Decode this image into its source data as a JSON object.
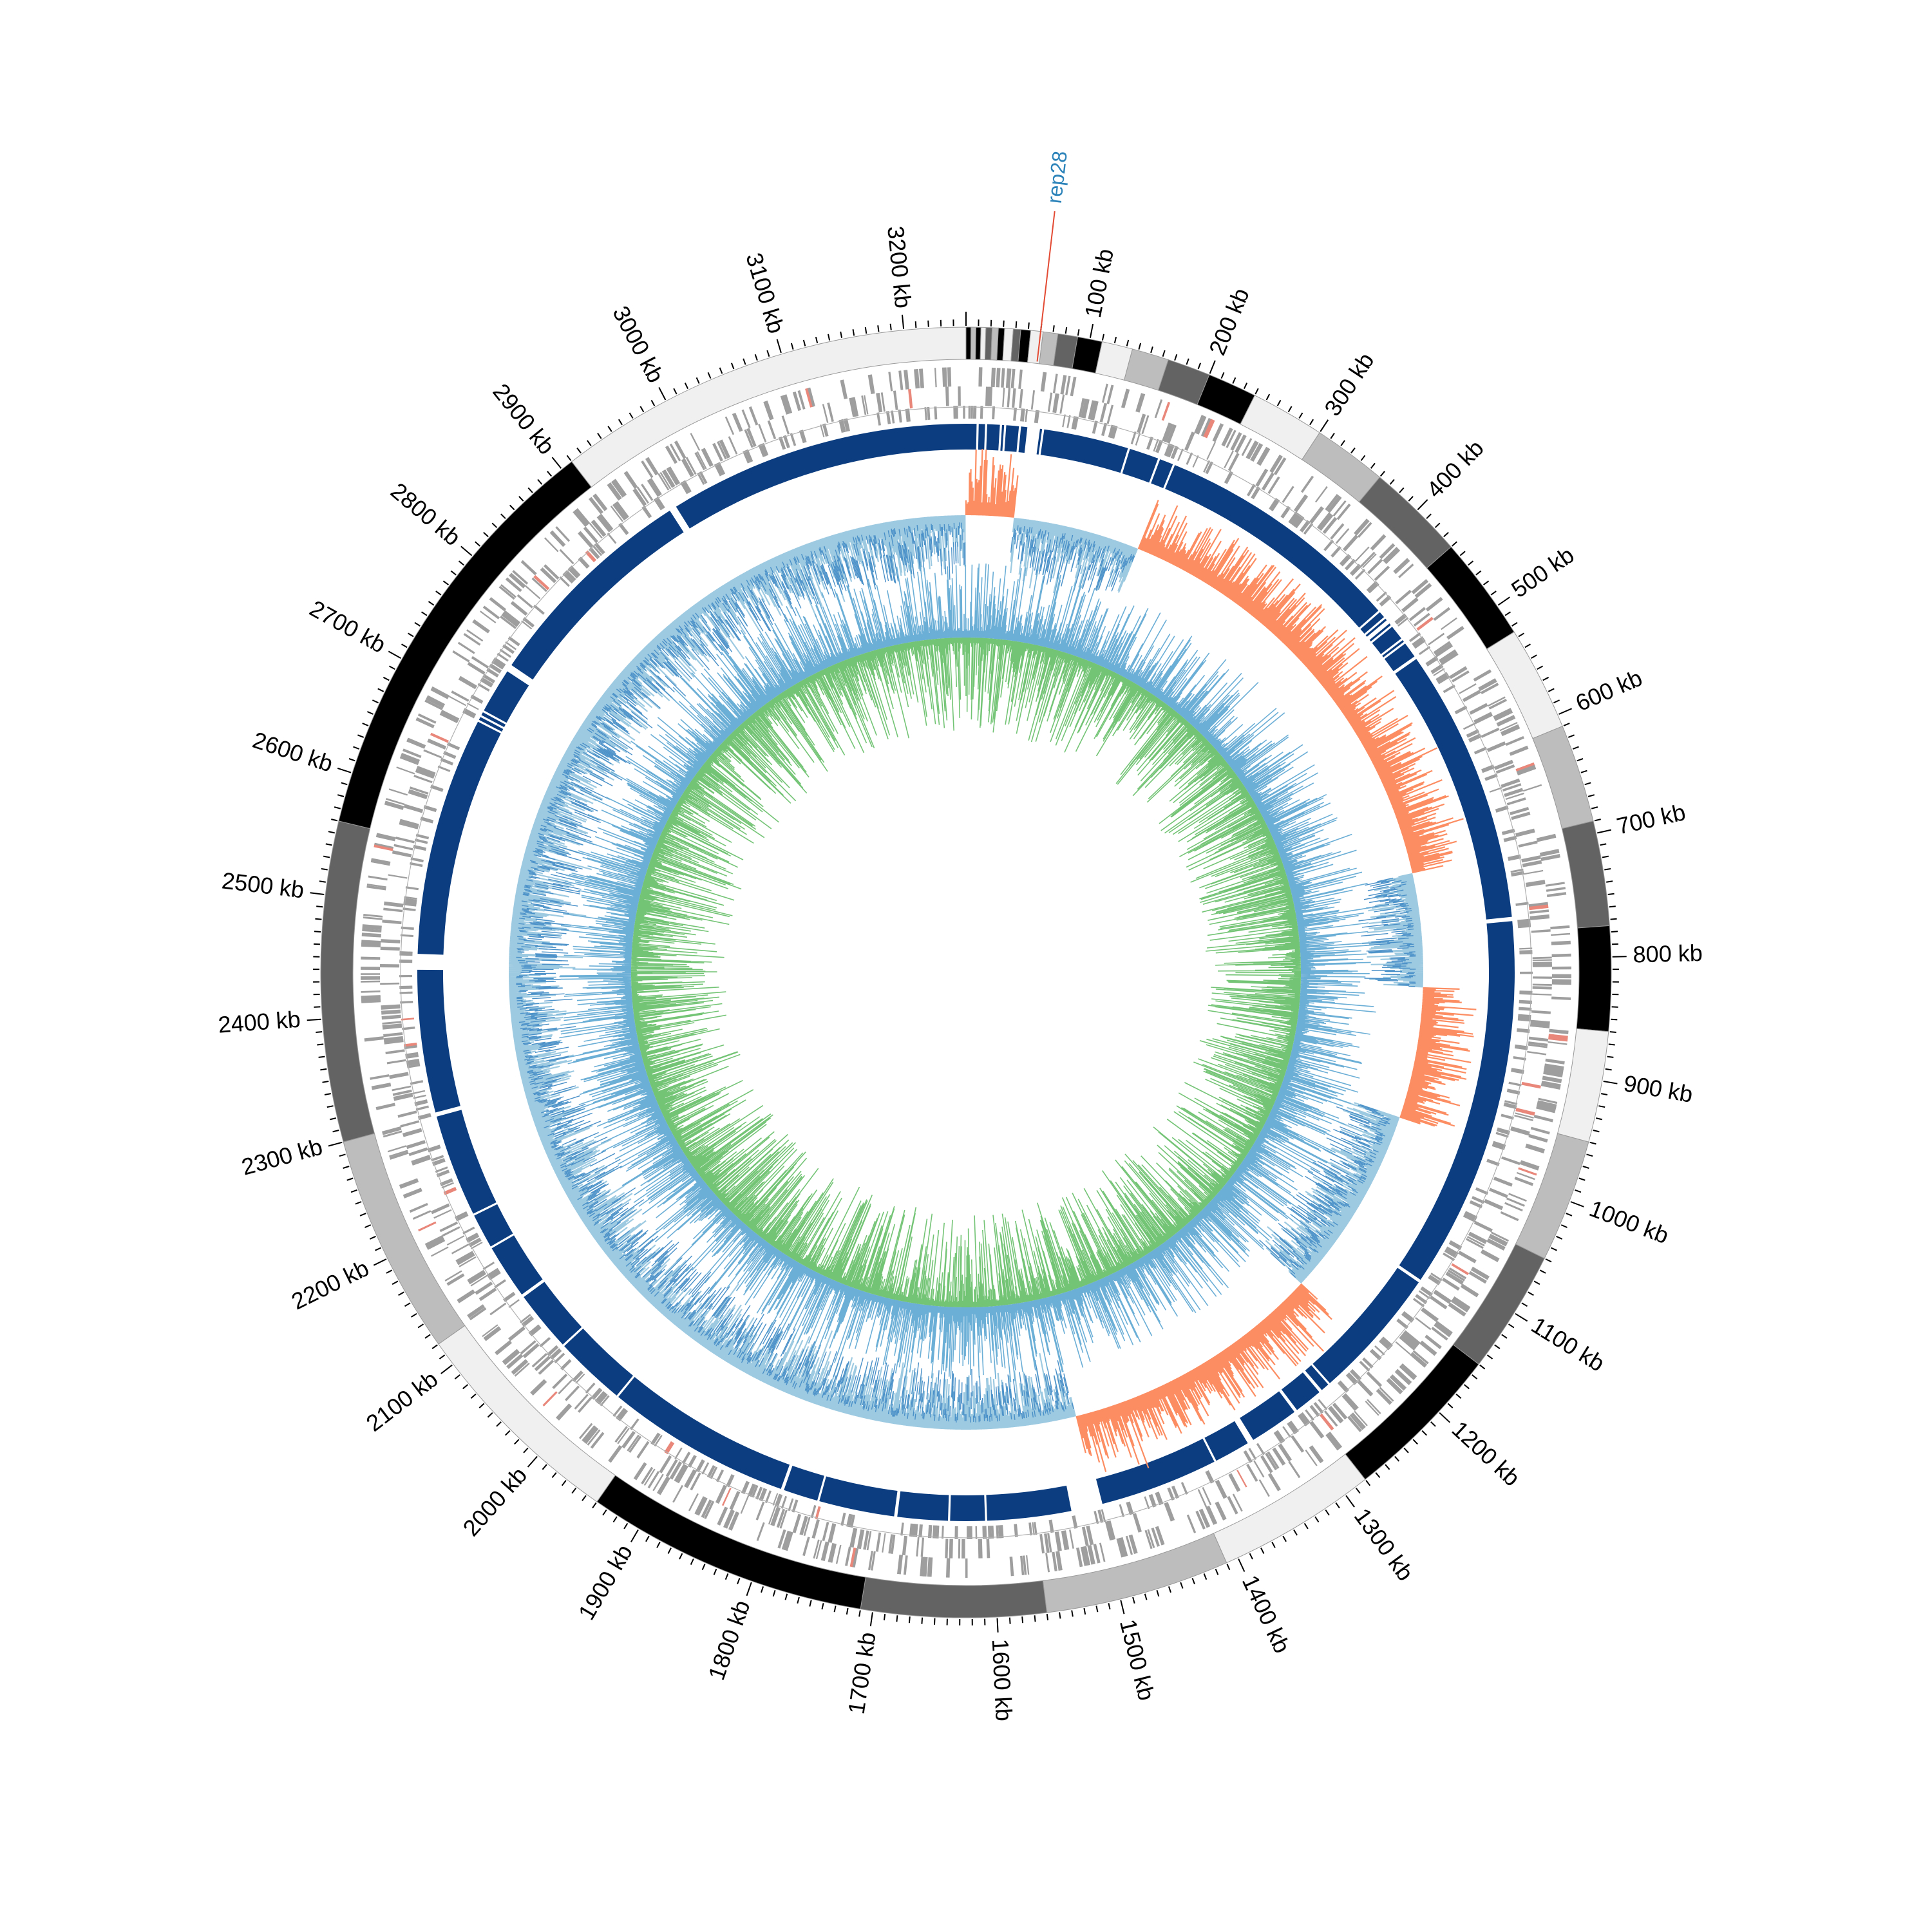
{
  "chart_data": {
    "type": "circular-genome",
    "genome_length_kb": 3250,
    "unit": "kb",
    "tick_major_interval_kb": 100,
    "tick_minor_interval_kb": 10,
    "tick_labels": [
      "100 kb",
      "200 kb",
      "300 kb",
      "400 kb",
      "500 kb",
      "600 kb",
      "700 kb",
      "800 kb",
      "900 kb",
      "1000 kb",
      "1100 kb",
      "1200 kb",
      "1300 kb",
      "1400 kb",
      "1500 kb",
      "1600 kb",
      "1700 kb",
      "1800 kb",
      "1900 kb",
      "2000 kb",
      "2100 kb",
      "2200 kb",
      "2300 kb",
      "2400 kb",
      "2500 kb",
      "2600 kb",
      "2700 kb",
      "2800 kb",
      "2900 kb",
      "3000 kb",
      "3100 kb",
      "3200 kb"
    ],
    "marker": {
      "label": "rep28",
      "position_kb": 60
    },
    "contig_ring": {
      "segments": [
        {
          "start": 0,
          "end": 4,
          "color": "#000000"
        },
        {
          "start": 4,
          "end": 8,
          "color": "#bdbdbd"
        },
        {
          "start": 8,
          "end": 12,
          "color": "#000000"
        },
        {
          "start": 12,
          "end": 16,
          "color": "#f0f0f0"
        },
        {
          "start": 16,
          "end": 21,
          "color": "#636363"
        },
        {
          "start": 21,
          "end": 26,
          "color": "#bdbdbd"
        },
        {
          "start": 26,
          "end": 31,
          "color": "#000000"
        },
        {
          "start": 31,
          "end": 38,
          "color": "#f0f0f0"
        },
        {
          "start": 38,
          "end": 44,
          "color": "#636363"
        },
        {
          "start": 44,
          "end": 52,
          "color": "#000000"
        },
        {
          "start": 52,
          "end": 62,
          "color": "#f0f0f0"
        },
        {
          "start": 62,
          "end": 74,
          "color": "#bdbdbd"
        },
        {
          "start": 74,
          "end": 90,
          "color": "#636363"
        },
        {
          "start": 90,
          "end": 110,
          "color": "#000000"
        },
        {
          "start": 110,
          "end": 135,
          "color": "#f0f0f0"
        },
        {
          "start": 135,
          "end": 165,
          "color": "#bdbdbd"
        },
        {
          "start": 165,
          "end": 200,
          "color": "#636363"
        },
        {
          "start": 200,
          "end": 240,
          "color": "#000000"
        },
        {
          "start": 240,
          "end": 300,
          "color": "#f0f0f0"
        },
        {
          "start": 300,
          "end": 360,
          "color": "#bdbdbd"
        },
        {
          "start": 360,
          "end": 440,
          "color": "#636363"
        },
        {
          "start": 440,
          "end": 525,
          "color": "#000000"
        },
        {
          "start": 525,
          "end": 610,
          "color": "#f0f0f0"
        },
        {
          "start": 610,
          "end": 690,
          "color": "#bdbdbd"
        },
        {
          "start": 690,
          "end": 775,
          "color": "#636363"
        },
        {
          "start": 775,
          "end": 860,
          "color": "#000000"
        },
        {
          "start": 860,
          "end": 950,
          "color": "#f0f0f0"
        },
        {
          "start": 950,
          "end": 1050,
          "color": "#bdbdbd"
        },
        {
          "start": 1050,
          "end": 1150,
          "color": "#636363"
        },
        {
          "start": 1150,
          "end": 1280,
          "color": "#000000"
        },
        {
          "start": 1280,
          "end": 1410,
          "color": "#f0f0f0"
        },
        {
          "start": 1410,
          "end": 1560,
          "color": "#bdbdbd"
        },
        {
          "start": 1560,
          "end": 1710,
          "color": "#636363"
        },
        {
          "start": 1710,
          "end": 1940,
          "color": "#000000"
        },
        {
          "start": 1940,
          "end": 2120,
          "color": "#f0f0f0"
        },
        {
          "start": 2120,
          "end": 2300,
          "color": "#bdbdbd"
        },
        {
          "start": 2300,
          "end": 2560,
          "color": "#636363"
        },
        {
          "start": 2560,
          "end": 2910,
          "color": "#000000"
        },
        {
          "start": 2910,
          "end": 3250,
          "color": "#f0f0f0"
        }
      ]
    },
    "coverage_ring": {
      "color": "#0b3d80",
      "gaps_kb": [
        [
          10,
          12
        ],
        [
          18,
          20
        ],
        [
          32,
          34
        ],
        [
          36,
          38
        ],
        [
          50,
          52
        ],
        [
          58,
          70
        ],
        [
          72,
          74
        ],
        [
          155,
          157
        ],
        [
          185,
          187
        ],
        [
          200,
          202
        ],
        [
          440,
          442
        ],
        [
          448,
          450
        ],
        [
          452,
          456
        ],
        [
          458,
          460
        ],
        [
          474,
          476
        ],
        [
          478,
          480
        ],
        [
          495,
          498
        ],
        [
          760,
          764
        ],
        [
          1120,
          1123
        ],
        [
          1250,
          1252
        ],
        [
          1260,
          1263
        ],
        [
          1290,
          1293
        ],
        [
          1340,
          1346
        ],
        [
          1380,
          1382
        ],
        [
          1495,
          1525
        ],
        [
          1605,
          1607
        ],
        [
          1640,
          1642
        ],
        [
          1690,
          1693
        ],
        [
          1765,
          1767
        ],
        [
          1800,
          1803
        ],
        [
          1980,
          1982
        ],
        [
          2050,
          2052
        ],
        [
          2110,
          2113
        ],
        [
          2165,
          2167
        ],
        [
          2200,
          2202
        ],
        [
          2300,
          2304
        ],
        [
          2440,
          2455
        ],
        [
          2445,
          2447
        ],
        [
          2683,
          2685
        ],
        [
          2688,
          2690
        ],
        [
          2693,
          2695
        ],
        [
          2738,
          2745
        ],
        [
          2955,
          2962
        ]
      ]
    },
    "gc_skew": {
      "positive_color": "#fc8d62",
      "negative_color": "#9ecae1",
      "sign_change_kb": [
        0,
        55,
        200,
        700,
        830,
        980,
        1200,
        1500
      ]
    },
    "gc_content": {
      "colors": [
        "#6baed6",
        "#74c476"
      ]
    }
  }
}
